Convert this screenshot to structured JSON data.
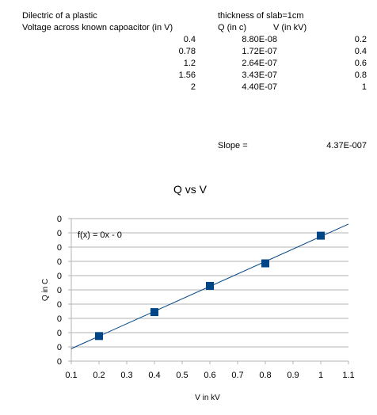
{
  "sheet": {
    "title": "Dilectric of a plastic",
    "note": "thickness of slab=1cm",
    "col_a_header": "Voltage across known capoacitor (in V)",
    "col_b_header": "Q (in c)",
    "col_c_header": "V (in kV)",
    "rows": [
      {
        "a": "0.4",
        "b": "8.80E-08",
        "c": "0.2"
      },
      {
        "a": "0.78",
        "b": "1.72E-07",
        "c": "0.4"
      },
      {
        "a": "1.2",
        "b": "2.64E-07",
        "c": "0.6"
      },
      {
        "a": "1.56",
        "b": "3.43E-07",
        "c": "0.8"
      },
      {
        "a": "2",
        "b": "4.40E-07",
        "c": "1"
      }
    ],
    "slope_label": "Slope =",
    "slope_value": "4.37E-007"
  },
  "chart_data": {
    "type": "scatter",
    "title": "Q vs V",
    "xlabel": "V in kV",
    "ylabel": "Q in C",
    "xlim": [
      0.1,
      1.1
    ],
    "x_ticks": [
      "0.1",
      "0.2",
      "0.3",
      "0.4",
      "0.5",
      "0.6",
      "0.7",
      "0.8",
      "0.9",
      "1",
      "1.1"
    ],
    "ylim": [
      0,
      5e-07
    ],
    "y_tick_count": 11,
    "y_tick_label": "0",
    "grid": true,
    "series": [
      {
        "x": [
          0.2,
          0.4,
          0.6,
          0.8,
          1.0
        ],
        "y": [
          8.8e-08,
          1.72e-07,
          2.64e-07,
          3.43e-07,
          4.4e-07
        ],
        "color": "#004586"
      }
    ],
    "trendline": {
      "slope": 4.37e-07,
      "intercept": 0,
      "color": "#004586",
      "label": "f(x) = 0x - 0"
    }
  }
}
